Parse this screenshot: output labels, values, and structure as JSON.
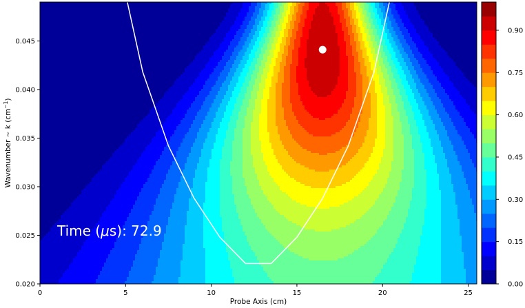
{
  "chart_data": {
    "type": "heatmap",
    "subtype": "filled-contour",
    "xlabel": "Probe Axis (cm)",
    "ylabel": "Wavenumber ~ k (cm",
    "ylabel_exponent": "−1",
    "ylabel_close": ")",
    "xlim": [
      0,
      25.5
    ],
    "ylim": [
      0.02,
      0.049
    ],
    "x_ticks": [
      0,
      5,
      10,
      15,
      20,
      25
    ],
    "x_tick_labels": [
      "0",
      "5",
      "10",
      "15",
      "20",
      "25"
    ],
    "y_ticks": [
      0.02,
      0.025,
      0.03,
      0.035,
      0.04,
      0.045
    ],
    "y_tick_labels": [
      "0.020",
      "0.025",
      "0.030",
      "0.035",
      "0.040",
      "0.045"
    ],
    "colorbar": {
      "range": [
        0,
        1
      ],
      "levels": 20,
      "ticks": [
        0.0,
        0.15,
        0.3,
        0.45,
        0.6,
        0.75,
        0.9
      ],
      "tick_labels": [
        "0.00",
        "0.15",
        "0.30",
        "0.45",
        "0.60",
        "0.75",
        "0.90"
      ],
      "colormap": "jet"
    },
    "field": {
      "peak_x": 16.5,
      "peak_k": 0.0441,
      "peak_value": 0.95
    },
    "white_curve": {
      "x": [
        5.1,
        6.0,
        7.5,
        9.0,
        10.5,
        12.0,
        13.5,
        15.0,
        16.5,
        18.0,
        19.5,
        20.4
      ],
      "y": [
        0.049,
        0.0418,
        0.0342,
        0.0288,
        0.0248,
        0.0221,
        0.0221,
        0.0248,
        0.0288,
        0.0342,
        0.0418,
        0.049
      ]
    },
    "peak_marker": {
      "x": 16.5,
      "y": 0.0441,
      "color": "#ffffff"
    },
    "annotation": {
      "prefix": "Time (",
      "symbol": "μ",
      "unit": "s",
      "suffix": "): ",
      "value": "72.9"
    },
    "grid": false
  }
}
